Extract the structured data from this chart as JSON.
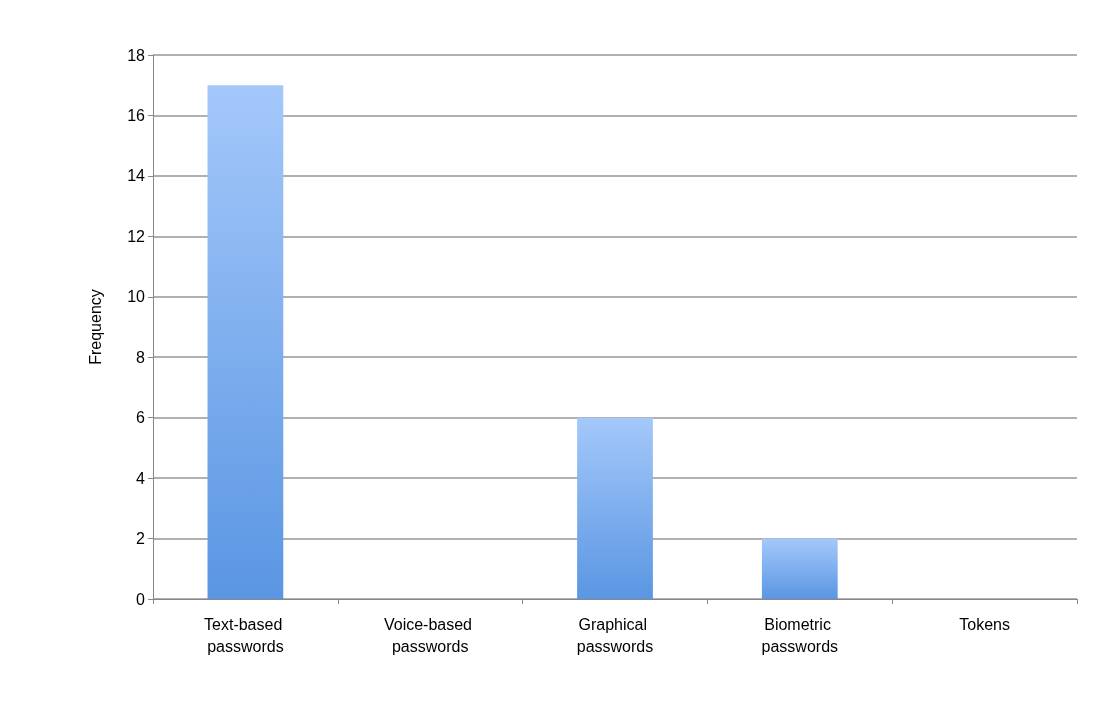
{
  "chart_data": {
    "type": "bar",
    "ylabel": "Frequency",
    "categories": [
      "Text-based passwords",
      "Voice-based passwords",
      "Graphical passwords",
      "Biometric passwords",
      "Tokens"
    ],
    "values": [
      17,
      0,
      6,
      2,
      0
    ],
    "color": "#5a96e3",
    "ylim": [
      0,
      18
    ],
    "yticks": [
      0,
      2,
      4,
      6,
      8,
      10,
      12,
      14,
      16,
      18
    ],
    "grid": "y"
  }
}
